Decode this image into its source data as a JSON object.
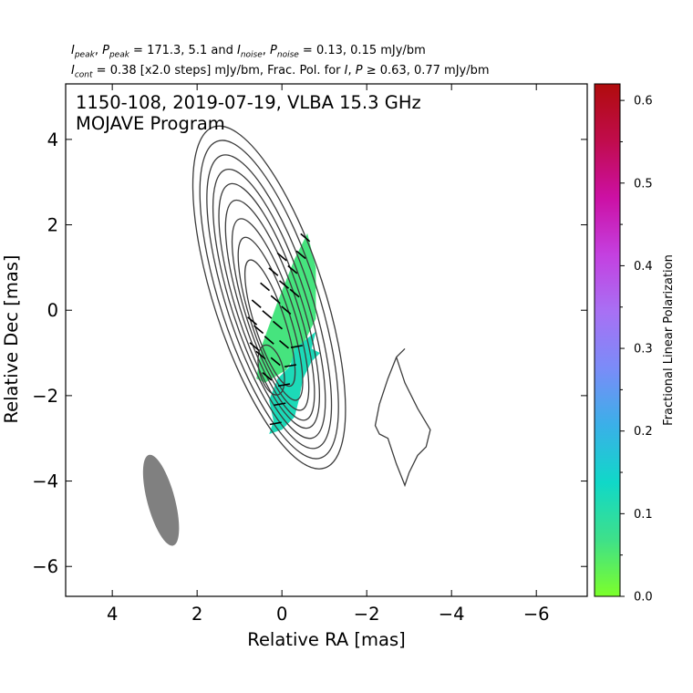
{
  "header": {
    "line1": {
      "i": "I",
      "i_sub": "peak",
      "sep1": ", ",
      "p": "P",
      "p_sub": "peak",
      "mid": " = 171.3, 5.1 and ",
      "i2": "I",
      "i2_sub": "noise",
      "sep2": ", ",
      "p2": "P",
      "p2_sub": "noise",
      "tail": " = 0.13, 0.15 mJy/bm"
    },
    "line2": {
      "i": "I",
      "i_sub": "cont",
      "mid": " = 0.38 [x2.0 steps] mJy/bm, Frac. Pol. for ",
      "i2": "I",
      "sep": ", ",
      "p": "P",
      "tail": " ≥  0.63, 0.77 mJy/bm"
    }
  },
  "chart_data": {
    "type": "heatmap",
    "title_line1": "1150-108, 2019-07-19, VLBA 15.3 GHz",
    "title_line2": "MOJAVE Program",
    "xlabel": "Relative RA [mas]",
    "ylabel": "Relative Dec [mas]",
    "xlim": [
      5.1,
      -7.2
    ],
    "ylim": [
      -6.7,
      5.3
    ],
    "x_ticks": [
      4,
      2,
      0,
      -2,
      -4,
      -6
    ],
    "x_tick_labels": [
      "4",
      "2",
      "0",
      "−2",
      "−4",
      "−6"
    ],
    "y_ticks": [
      4,
      2,
      0,
      -2,
      -4,
      -6
    ],
    "y_tick_labels": [
      "4",
      "2",
      "0",
      "−2",
      "−4",
      "−6"
    ],
    "colorbar": {
      "label": "Fractional Linear Polarization",
      "range": [
        0.0,
        0.62
      ],
      "ticks": [
        0.0,
        0.1,
        0.2,
        0.3,
        0.4,
        0.5,
        0.6
      ],
      "tick_labels": [
        "0.0",
        "0.1",
        "0.2",
        "0.3",
        "0.4",
        "0.5",
        "0.6"
      ],
      "minor_ticks": [
        0.05,
        0.15,
        0.25,
        0.35,
        0.45,
        0.55
      ],
      "colors": [
        "#7cff2a",
        "#3ee08a",
        "#10d8c8",
        "#3ab0e8",
        "#7a8cf8",
        "#a870f4",
        "#c440e0",
        "#cc10a4",
        "#c00c4c",
        "#b00c0c"
      ]
    },
    "contours": [
      {
        "level": 1,
        "center": [
          0.3,
          0.3
        ],
        "half_width": 1.3,
        "half_height": 4.2,
        "angle": -18
      },
      {
        "level": 2,
        "center": [
          0.3,
          0.25
        ],
        "half_width": 1.15,
        "half_height": 3.9,
        "angle": -18
      },
      {
        "level": 3,
        "center": [
          0.3,
          0.2
        ],
        "half_width": 1.0,
        "half_height": 3.6,
        "angle": -18
      },
      {
        "level": 4,
        "center": [
          0.3,
          0.15
        ],
        "half_width": 0.88,
        "half_height": 3.3,
        "angle": -18
      },
      {
        "level": 5,
        "center": [
          0.3,
          0.1
        ],
        "half_width": 0.77,
        "half_height": 3.0,
        "angle": -18
      },
      {
        "level": 6,
        "center": [
          0.28,
          0.0
        ],
        "half_width": 0.66,
        "half_height": 2.7,
        "angle": -18
      },
      {
        "level": 7,
        "center": [
          0.27,
          -0.1
        ],
        "half_width": 0.56,
        "half_height": 2.35,
        "angle": -18
      },
      {
        "level": 8,
        "center": [
          0.27,
          -0.2
        ],
        "half_width": 0.46,
        "half_height": 2.0,
        "angle": -18
      },
      {
        "level": 9,
        "center": [
          0.28,
          -0.3
        ],
        "half_width": 0.36,
        "half_height": 1.55,
        "angle": -18
      },
      {
        "level": 10,
        "center": [
          0.25,
          -1.4
        ],
        "half_width": 0.28,
        "half_height": 0.6,
        "angle": -15
      }
    ],
    "extended_component": [
      [
        -2.9,
        -0.9
      ],
      [
        -2.7,
        -1.1
      ],
      [
        -2.9,
        -1.7
      ],
      [
        -3.2,
        -2.3
      ],
      [
        -3.5,
        -2.8
      ],
      [
        -3.4,
        -3.2
      ],
      [
        -3.2,
        -3.4
      ],
      [
        -3.0,
        -3.8
      ],
      [
        -2.9,
        -4.1
      ],
      [
        -2.7,
        -3.6
      ],
      [
        -2.5,
        -3.0
      ],
      [
        -2.3,
        -2.9
      ],
      [
        -2.2,
        -2.7
      ],
      [
        -2.3,
        -2.2
      ],
      [
        -2.5,
        -1.6
      ],
      [
        -2.7,
        -1.1
      ]
    ],
    "polarization_regions": [
      {
        "frac_pol": 0.06,
        "outline": [
          [
            -0.6,
            1.8
          ],
          [
            -0.8,
            1.0
          ],
          [
            -0.8,
            -0.2
          ],
          [
            -0.5,
            -0.8
          ],
          [
            -0.1,
            -1.4
          ],
          [
            0.4,
            -1.7
          ],
          [
            0.6,
            -1.6
          ],
          [
            0.5,
            -0.9
          ],
          [
            0.1,
            0.2
          ],
          [
            -0.3,
            1.2
          ]
        ]
      },
      {
        "frac_pol": 0.12,
        "outline": [
          [
            -0.8,
            -0.5
          ],
          [
            -0.7,
            -0.9
          ],
          [
            -0.9,
            -1.0
          ],
          [
            -0.7,
            -1.2
          ],
          [
            -0.5,
            -1.6
          ],
          [
            -0.4,
            -2.1
          ],
          [
            -0.3,
            -2.5
          ],
          [
            0.0,
            -2.8
          ],
          [
            0.3,
            -2.9
          ],
          [
            0.2,
            -2.6
          ],
          [
            0.3,
            -2.1
          ],
          [
            0.1,
            -1.6
          ],
          [
            -0.2,
            -1.3
          ],
          [
            -0.3,
            -0.9
          ]
        ]
      }
    ],
    "evpa_ticks": [
      {
        "x": 0.35,
        "y": -1.55,
        "angle": 40
      },
      {
        "x": 0.15,
        "y": -1.2,
        "angle": 40
      },
      {
        "x": -0.05,
        "y": -0.8,
        "angle": 40
      },
      {
        "x": 0.5,
        "y": -1.05,
        "angle": 40
      },
      {
        "x": 0.3,
        "y": -0.7,
        "angle": 40
      },
      {
        "x": 0.1,
        "y": -0.35,
        "angle": 40
      },
      {
        "x": -0.1,
        "y": 0.0,
        "angle": 40
      },
      {
        "x": -0.3,
        "y": 0.4,
        "angle": 40
      },
      {
        "x": 0.55,
        "y": -0.45,
        "angle": 40
      },
      {
        "x": 0.35,
        "y": -0.1,
        "angle": 40
      },
      {
        "x": 0.15,
        "y": 0.25,
        "angle": 40
      },
      {
        "x": -0.05,
        "y": 0.6,
        "angle": 40
      },
      {
        "x": -0.25,
        "y": 0.95,
        "angle": 40
      },
      {
        "x": -0.45,
        "y": 1.3,
        "angle": 40
      },
      {
        "x": -0.55,
        "y": 1.7,
        "angle": 40
      },
      {
        "x": 0.4,
        "y": 0.55,
        "angle": 40
      },
      {
        "x": 0.2,
        "y": 0.9,
        "angle": 40
      },
      {
        "x": 0.0,
        "y": 1.25,
        "angle": 40
      },
      {
        "x": 0.6,
        "y": 0.15,
        "angle": 40
      },
      {
        "x": 0.7,
        "y": -0.25,
        "angle": 40
      },
      {
        "x": 0.65,
        "y": -0.85,
        "angle": 40
      },
      {
        "x": 0.15,
        "y": -2.65,
        "angle": -10
      },
      {
        "x": 0.05,
        "y": -2.2,
        "angle": -10
      },
      {
        "x": -0.05,
        "y": -1.75,
        "angle": -10
      },
      {
        "x": -0.2,
        "y": -1.3,
        "angle": -10
      },
      {
        "x": -0.35,
        "y": -0.85,
        "angle": -10
      }
    ],
    "beam": {
      "center": [
        2.85,
        -4.45
      ],
      "major": 2.2,
      "minor": 0.65,
      "angle": -15
    }
  }
}
